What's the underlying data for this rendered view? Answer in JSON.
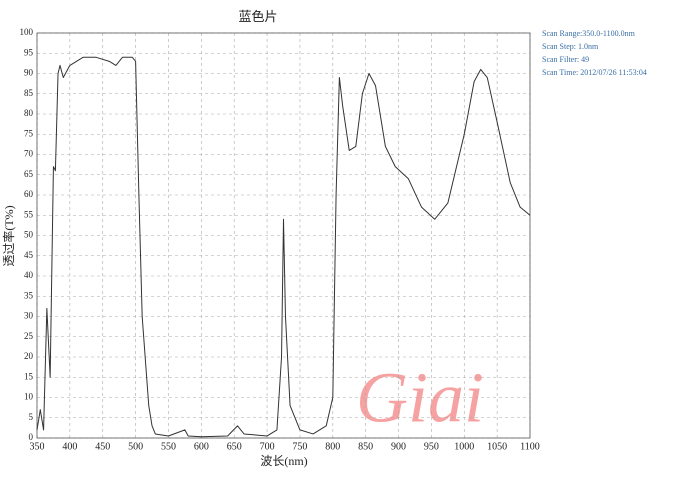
{
  "chart_data": {
    "type": "line",
    "title": "蓝色片",
    "xlabel": "波长(nm)",
    "ylabel": "透过率(T%)",
    "scan_info": [
      "Scan Range:350.0-1100.0nm",
      "Scan Step:  1.0nm",
      "Scan Filter: 49",
      "Scan Time: 2012/07/26  11:53:04"
    ],
    "watermark": "Giai",
    "xlim": [
      350,
      1100
    ],
    "ylim": [
      0,
      100
    ],
    "xticks": [
      350,
      400,
      450,
      500,
      550,
      600,
      650,
      700,
      750,
      800,
      850,
      900,
      950,
      1000,
      1050,
      1100
    ],
    "yticks": [
      0,
      5,
      10,
      15,
      20,
      25,
      30,
      35,
      40,
      45,
      50,
      55,
      60,
      65,
      70,
      75,
      80,
      85,
      90,
      95,
      100
    ],
    "grid": true,
    "series": [
      {
        "color": "#333333",
        "x": [
          350,
          355,
          360,
          365,
          370,
          375,
          378,
          382,
          385,
          390,
          400,
          420,
          440,
          460,
          470,
          480,
          495,
          500,
          505,
          510,
          520,
          525,
          530,
          550,
          575,
          580,
          600,
          640,
          655,
          665,
          700,
          715,
          722,
          725,
          728,
          735,
          750,
          770,
          790,
          800,
          805,
          810,
          815,
          825,
          835,
          845,
          855,
          865,
          880,
          895,
          915,
          935,
          955,
          975,
          1000,
          1015,
          1025,
          1035,
          1050,
          1070,
          1085,
          1100
        ],
        "values": [
          2,
          7,
          2,
          32,
          15,
          67,
          66,
          90,
          92,
          89,
          92,
          94,
          94,
          93,
          92,
          94,
          94,
          93,
          60,
          30,
          8,
          3,
          1,
          0.5,
          2,
          0.5,
          0.3,
          0.5,
          3,
          1,
          0.5,
          2,
          20,
          54,
          30,
          8,
          2,
          1,
          3,
          10,
          60,
          89,
          82,
          71,
          72,
          85,
          90,
          87,
          72,
          67,
          64,
          57,
          54,
          58,
          75,
          88,
          91,
          89,
          78,
          63,
          57,
          55
        ]
      }
    ]
  }
}
